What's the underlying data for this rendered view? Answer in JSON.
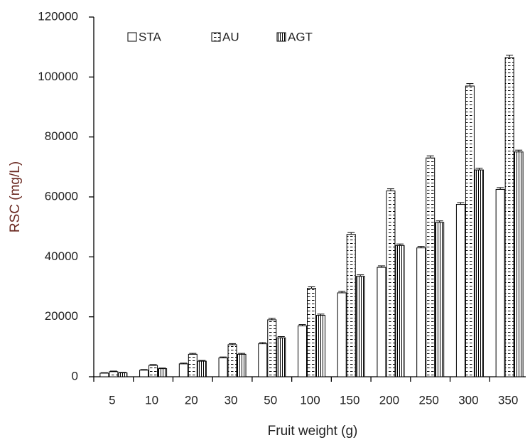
{
  "chart_data": {
    "type": "bar",
    "x_label": "Fruit weight (g)",
    "y_label": "RSC (mg/L)",
    "categories": [
      "5",
      "10",
      "20",
      "30",
      "50",
      "100",
      "150",
      "200",
      "250",
      "300",
      "350"
    ],
    "series": [
      {
        "name": "STA",
        "color": "#000000",
        "hatch": "none",
        "values": [
          1200,
          2200,
          4300,
          6300,
          11000,
          17000,
          28000,
          36500,
          43000,
          57500,
          62500
        ],
        "errors": [
          150,
          200,
          250,
          300,
          400,
          400,
          500,
          500,
          500,
          600,
          600
        ]
      },
      {
        "name": "AU",
        "color": "#000000",
        "hatch": "dashes",
        "values": [
          1700,
          3800,
          7500,
          10700,
          19000,
          29500,
          47500,
          62000,
          73000,
          97000,
          106500
        ],
        "errors": [
          200,
          250,
          300,
          350,
          500,
          500,
          600,
          700,
          700,
          800,
          800
        ]
      },
      {
        "name": "AGT",
        "color": "#000000",
        "hatch": "vertical",
        "values": [
          1300,
          2700,
          5200,
          7500,
          13000,
          20500,
          33500,
          43800,
          51500,
          69000,
          75000
        ],
        "errors": [
          150,
          200,
          250,
          300,
          400,
          400,
          500,
          500,
          500,
          600,
          600
        ]
      }
    ],
    "ylim": [
      0,
      120000
    ],
    "yticks": [
      0,
      20000,
      40000,
      60000,
      80000,
      100000,
      120000
    ],
    "legend": "top"
  }
}
